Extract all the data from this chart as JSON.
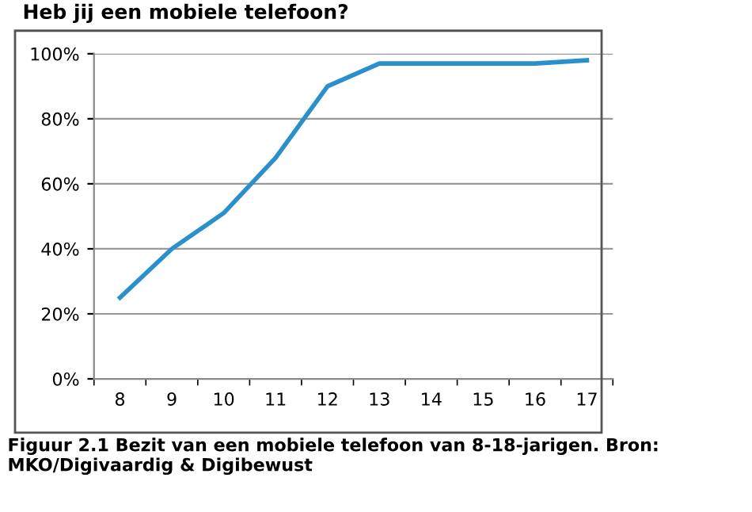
{
  "chart_data": {
    "type": "line",
    "title": "Heb jij een mobiele telefoon?",
    "categories": [
      "8",
      "9",
      "10",
      "11",
      "12",
      "13",
      "14",
      "15",
      "16",
      "17"
    ],
    "series": [
      {
        "color": "#2a8fcb",
        "values": [
          25,
          40,
          51,
          68,
          90,
          97,
          97,
          97,
          97,
          98
        ]
      }
    ],
    "ylim": [
      0,
      100
    ],
    "yticks": [
      {
        "value": 0,
        "label": "0%"
      },
      {
        "value": 20,
        "label": "20%"
      },
      {
        "value": 40,
        "label": "40%"
      },
      {
        "value": 60,
        "label": "60%"
      },
      {
        "value": 80,
        "label": "80%"
      },
      {
        "value": 100,
        "label": "100%"
      }
    ],
    "grid": "y",
    "legend": false,
    "marker": "none",
    "line_style": "solid",
    "annotations": [
      "Figuur 2.1 Bezit van een mobiele telefoon van 8-18-jarigen. Bron: MKO/Digivaardig & Digibewust"
    ]
  }
}
